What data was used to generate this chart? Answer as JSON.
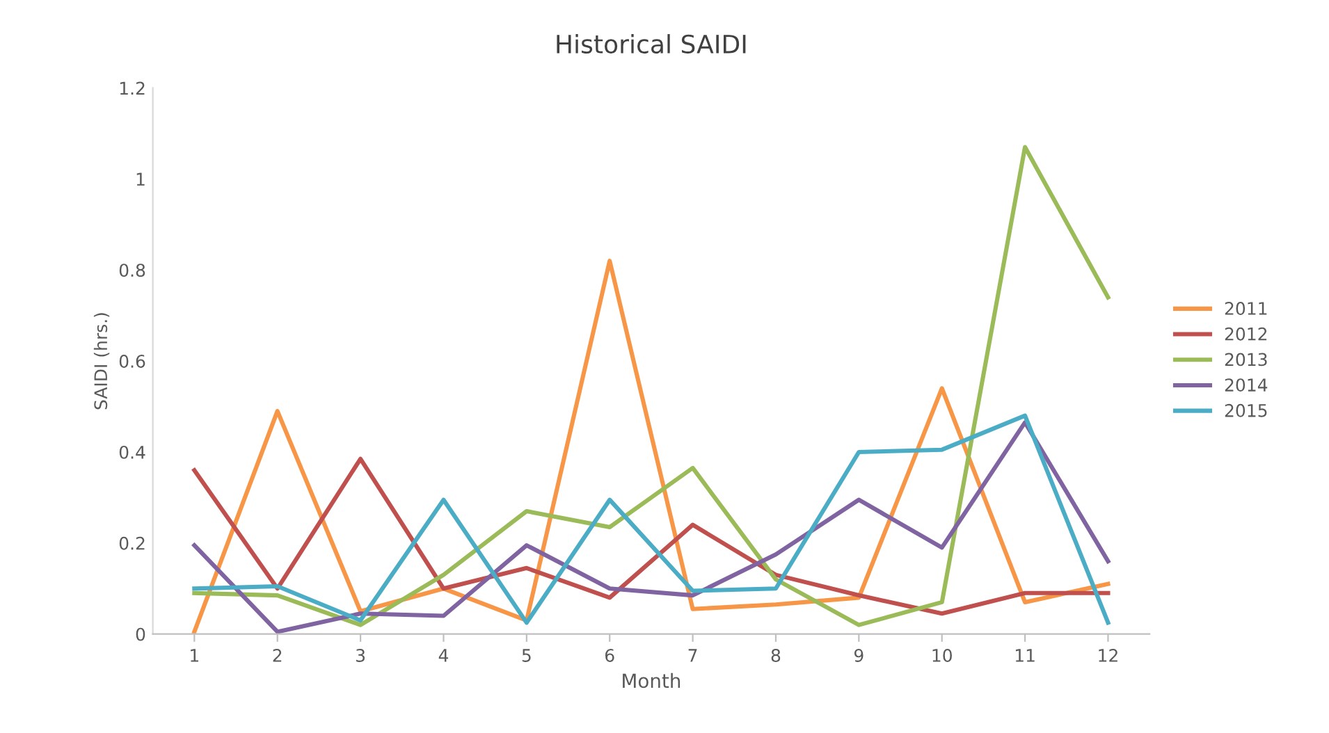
{
  "chart_data": {
    "type": "line",
    "title": "Historical SAIDI",
    "xlabel": "Month",
    "ylabel": "SAIDI (hrs.)",
    "categories": [
      "1",
      "2",
      "3",
      "4",
      "5",
      "6",
      "7",
      "8",
      "9",
      "10",
      "11",
      "12"
    ],
    "series": [
      {
        "name": "2011",
        "color": "#f79646",
        "values": [
          0.005,
          0.49,
          0.05,
          0.1,
          0.03,
          0.82,
          0.055,
          0.065,
          0.08,
          0.54,
          0.07,
          0.11
        ]
      },
      {
        "name": "2012",
        "color": "#c0504d",
        "values": [
          0.36,
          0.1,
          0.385,
          0.1,
          0.145,
          0.08,
          0.24,
          0.13,
          0.085,
          0.045,
          0.09,
          0.09
        ]
      },
      {
        "name": "2013",
        "color": "#9bbb59",
        "values": [
          0.09,
          0.085,
          0.02,
          0.13,
          0.27,
          0.235,
          0.365,
          0.12,
          0.02,
          0.07,
          1.07,
          0.74
        ]
      },
      {
        "name": "2014",
        "color": "#8064a2",
        "values": [
          0.195,
          0.005,
          0.045,
          0.04,
          0.195,
          0.1,
          0.085,
          0.175,
          0.295,
          0.19,
          0.465,
          0.16
        ]
      },
      {
        "name": "2015",
        "color": "#4bacc6",
        "values": [
          0.1,
          0.105,
          0.03,
          0.295,
          0.025,
          0.295,
          0.095,
          0.1,
          0.4,
          0.405,
          0.48,
          0.025
        ]
      }
    ],
    "ylim": [
      0,
      1.2
    ],
    "yticks": [
      0,
      0.2,
      0.4,
      0.6,
      0.8,
      1,
      1.2
    ],
    "grid": false,
    "legend": "right",
    "marker": "none",
    "line_style": "solid"
  }
}
